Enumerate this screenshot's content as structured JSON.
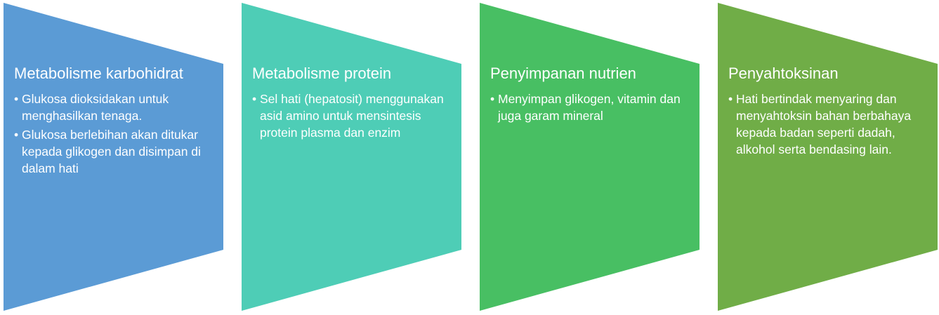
{
  "panels": [
    {
      "color": "#5B9BD5",
      "title": "Metabolisme karbohidrat",
      "bullets": [
        "Glukosa dioksidakan untuk menghasilkan tenaga.",
        "Glukosa berlebihan akan ditukar kepada glikogen dan disimpan di dalam hati"
      ]
    },
    {
      "color": "#4ECDB6",
      "title": "Metabolisme protein",
      "bullets": [
        "Sel hati (hepatosit) menggunakan asid amino untuk mensintesis protein plasma dan enzim"
      ]
    },
    {
      "color": "#48BF63",
      "title": "Penyimpanan nutrien",
      "bullets": [
        "Menyimpan glikogen, vitamin dan juga garam mineral"
      ]
    },
    {
      "color": "#70AD47",
      "title": "Penyahtoksinan",
      "bullets": [
        "Hati bertindak menyaring dan menyahtoksin bahan berbahaya kepada badan seperti dadah, alkohol serta bendasing lain."
      ]
    }
  ],
  "bullet_symbol": "•"
}
